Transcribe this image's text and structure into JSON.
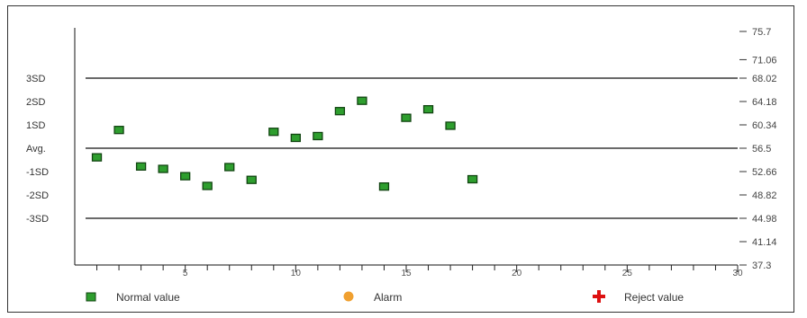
{
  "chart_data": {
    "type": "scatter",
    "title": "",
    "xlabel": "",
    "ylabel": "",
    "xlim": [
      0,
      30
    ],
    "ylim": [
      37.3,
      75.7
    ],
    "x_ticks": [
      {
        "value": 5,
        "label": "5"
      },
      {
        "value": 10,
        "label": "10"
      },
      {
        "value": 15,
        "label": "15"
      },
      {
        "value": 20,
        "label": "20"
      },
      {
        "value": 25,
        "label": "25"
      },
      {
        "value": 30,
        "label": "30"
      }
    ],
    "right_ticks": [
      {
        "value": 75.7,
        "label": "75.7"
      },
      {
        "value": 71.06,
        "label": "71.06"
      },
      {
        "value": 68.02,
        "label": "68.02"
      },
      {
        "value": 64.18,
        "label": "64.18"
      },
      {
        "value": 60.34,
        "label": "60.34"
      },
      {
        "value": 56.5,
        "label": "56.5"
      },
      {
        "value": 52.66,
        "label": "52.66"
      },
      {
        "value": 48.82,
        "label": "48.82"
      },
      {
        "value": 44.98,
        "label": "44.98"
      },
      {
        "value": 41.14,
        "label": "41.14"
      },
      {
        "value": 37.3,
        "label": "37.3"
      }
    ],
    "left_labels": [
      {
        "label": "3SD",
        "value": 68.02
      },
      {
        "label": "2SD",
        "value": 64.18
      },
      {
        "label": "1SD",
        "value": 60.34
      },
      {
        "label": "Avg.",
        "value": 56.5
      },
      {
        "label": "-1SD",
        "value": 52.66
      },
      {
        "label": "-2SD",
        "value": 48.82
      },
      {
        "label": "-3SD",
        "value": 44.98
      }
    ],
    "reference_lines": [
      68.02,
      56.5,
      44.98
    ],
    "series": [
      {
        "name": "Normal value",
        "color": "#2e9e2e",
        "marker": "square",
        "points": [
          {
            "x": 1,
            "y": 55.0
          },
          {
            "x": 2,
            "y": 59.5
          },
          {
            "x": 3,
            "y": 53.5
          },
          {
            "x": 4,
            "y": 53.1
          },
          {
            "x": 5,
            "y": 51.9
          },
          {
            "x": 6,
            "y": 50.3
          },
          {
            "x": 7,
            "y": 53.4
          },
          {
            "x": 8,
            "y": 51.3
          },
          {
            "x": 9,
            "y": 59.2
          },
          {
            "x": 10,
            "y": 58.2
          },
          {
            "x": 11,
            "y": 58.5
          },
          {
            "x": 12,
            "y": 62.6
          },
          {
            "x": 13,
            "y": 64.3
          },
          {
            "x": 14,
            "y": 50.2
          },
          {
            "x": 15,
            "y": 61.5
          },
          {
            "x": 16,
            "y": 62.9
          },
          {
            "x": 17,
            "y": 60.2
          },
          {
            "x": 18,
            "y": 51.4
          }
        ]
      }
    ],
    "legend": [
      {
        "label": "Normal value",
        "color": "#2e9e2e",
        "marker": "square"
      },
      {
        "label": "Alarm",
        "color": "#f0a030",
        "marker": "circle"
      },
      {
        "label": "Reject value",
        "color": "#dd1111",
        "marker": "cross"
      }
    ],
    "legend_position": "bottom"
  }
}
